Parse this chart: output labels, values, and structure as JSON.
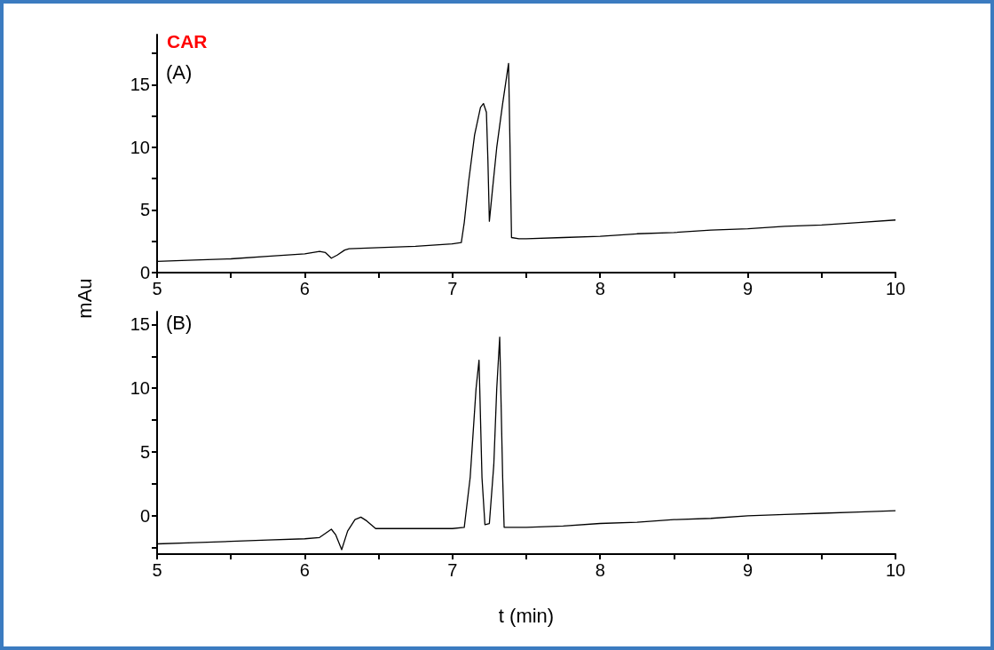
{
  "chart_data": [
    {
      "type": "line",
      "title": "CAR",
      "ylabel": "mAu",
      "annotations": [
        "(A)"
      ],
      "marker": "none",
      "xlim": [
        5,
        10
      ],
      "xticks": [
        5,
        {
          "value": 5.5,
          "label": null
        },
        6,
        {
          "value": 6.5,
          "label": null
        },
        7,
        {
          "value": 7.5,
          "label": null
        },
        8,
        {
          "value": 8.5,
          "label": null
        },
        9,
        {
          "value": 9.5,
          "label": null
        },
        10
      ],
      "ylim": [
        0,
        19
      ],
      "yticks": [
        0,
        {
          "value": 2.5,
          "label": null
        },
        5,
        {
          "value": 7.5,
          "label": null
        },
        10,
        {
          "value": 12.5,
          "label": null
        },
        15,
        {
          "value": 17.5,
          "label": null
        }
      ],
      "series": [
        {
          "color": "#000000",
          "x": [
            5,
            5.25,
            5.5,
            5.75,
            6,
            6.1,
            6.14,
            6.18,
            6.22,
            6.27,
            6.3,
            6.5,
            6.75,
            7,
            7.06,
            7.08,
            7.11,
            7.15,
            7.19,
            7.21,
            7.23,
            7.24,
            7.25,
            7.27,
            7.3,
            7.34,
            7.38,
            7.39,
            7.4,
            7.45,
            7.5,
            7.75,
            8,
            8.25,
            8.5,
            8.75,
            9,
            9.25,
            9.5,
            9.75,
            10
          ],
          "values": [
            0.9,
            1.0,
            1.1,
            1.3,
            1.5,
            1.7,
            1.6,
            1.15,
            1.4,
            1.8,
            1.9,
            2.0,
            2.1,
            2.3,
            2.4,
            4.0,
            7.3,
            11.0,
            13.2,
            13.5,
            12.8,
            9.0,
            4.1,
            6.5,
            10.0,
            13.5,
            16.7,
            10.0,
            2.8,
            2.7,
            2.7,
            2.8,
            2.9,
            3.1,
            3.2,
            3.4,
            3.5,
            3.7,
            3.8,
            4.0,
            4.2
          ]
        }
      ]
    },
    {
      "type": "line",
      "xlabel": "t (min)",
      "annotations": [
        "(B)"
      ],
      "marker": "none",
      "xlim": [
        5,
        10
      ],
      "xticks": [
        5,
        {
          "value": 5.5,
          "label": null
        },
        6,
        {
          "value": 6.5,
          "label": null
        },
        7,
        {
          "value": 7.5,
          "label": null
        },
        8,
        {
          "value": 8.5,
          "label": null
        },
        9,
        {
          "value": 9.5,
          "label": null
        },
        10
      ],
      "ylim": [
        -3,
        16
      ],
      "yticks": [
        {
          "value": -2.5,
          "label": null
        },
        0,
        {
          "value": 2.5,
          "label": null
        },
        5,
        {
          "value": 7.5,
          "label": null
        },
        10,
        {
          "value": 12.5,
          "label": null
        },
        15
      ],
      "series": [
        {
          "color": "#000000",
          "x": [
            5,
            5.25,
            5.5,
            5.75,
            6,
            6.1,
            6.15,
            6.18,
            6.21,
            6.25,
            6.29,
            6.34,
            6.38,
            6.42,
            6.48,
            6.75,
            7,
            7.08,
            7.12,
            7.16,
            7.18,
            7.2,
            7.22,
            7.25,
            7.28,
            7.3,
            7.32,
            7.34,
            7.35,
            7.4,
            7.5,
            7.75,
            8,
            8.25,
            8.5,
            8.75,
            9,
            9.25,
            9.5,
            9.75,
            10
          ],
          "values": [
            -2.2,
            -2.1,
            -2.0,
            -1.9,
            -1.8,
            -1.7,
            -1.3,
            -1.05,
            -1.5,
            -2.65,
            -1.2,
            -0.3,
            -0.1,
            -0.4,
            -1.0,
            -1.0,
            -1.0,
            -0.9,
            3.0,
            10.0,
            12.2,
            3.0,
            -0.7,
            -0.6,
            4.0,
            10.0,
            14.0,
            3.0,
            -0.9,
            -0.9,
            -0.9,
            -0.8,
            -0.6,
            -0.5,
            -0.3,
            -0.2,
            0.0,
            0.1,
            0.2,
            0.3,
            0.4
          ]
        }
      ]
    }
  ]
}
